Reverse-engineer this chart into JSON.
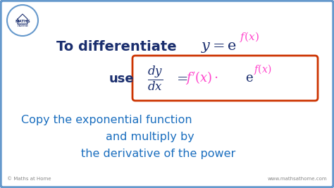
{
  "bg_color": "#ffffff",
  "outer_border_color": "#6699cc",
  "box_border_color": "#cc3300",
  "text_color_dark": "#1a2e6e",
  "text_color_blue": "#1a6ebf",
  "text_color_magenta": "#ff44cc",
  "line1": "To differentiate",
  "line2_use": "use",
  "line3": "Copy the exponential function",
  "line4": "and multiply by",
  "line5": "the derivative of the power",
  "watermark_left": "© Maths at Home",
  "watermark_right": "www.mathsathome.com"
}
